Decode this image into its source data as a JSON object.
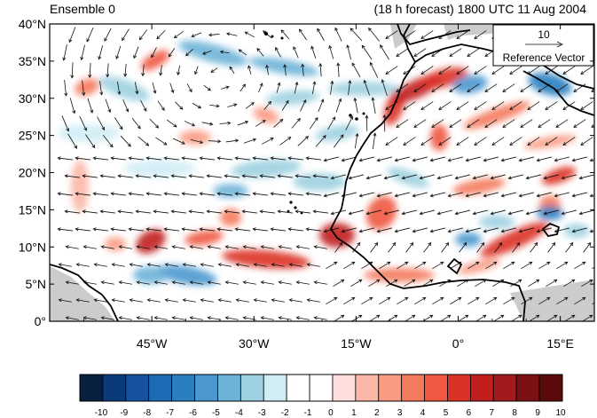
{
  "header": {
    "left_title": "Ensemble 0",
    "right_title": "(18 h forecast) 1800 UTC 11 Aug 2004"
  },
  "map": {
    "lon_range": [
      -60,
      20
    ],
    "lat_range": [
      0,
      40
    ],
    "lat_ticks": [
      {
        "value": 0,
        "label": "0°"
      },
      {
        "value": 5,
        "label": "5°N"
      },
      {
        "value": 10,
        "label": "10°N"
      },
      {
        "value": 15,
        "label": "15°N"
      },
      {
        "value": 20,
        "label": "20°N"
      },
      {
        "value": 25,
        "label": "25°N"
      },
      {
        "value": 30,
        "label": "30°N"
      },
      {
        "value": 35,
        "label": "35°N"
      },
      {
        "value": 40,
        "label": "40°N"
      }
    ],
    "lon_ticks": [
      {
        "value": -45,
        "label": "45°W"
      },
      {
        "value": -30,
        "label": "30°W"
      },
      {
        "value": -15,
        "label": "15°W"
      },
      {
        "value": 0,
        "label": "0°"
      },
      {
        "value": 15,
        "label": "15°E"
      }
    ],
    "colors": {
      "land_missing": "#cccccc",
      "coast": "#000000",
      "vector": "#000000"
    }
  },
  "reference_vector": {
    "magnitude": "10",
    "label": "Reference Vector"
  },
  "colorbar": {
    "levels": [
      "-10",
      "-9",
      "-8",
      "-7",
      "-6",
      "-5",
      "-4",
      "-3",
      "-2",
      "-1",
      "0",
      "1",
      "2",
      "3",
      "4",
      "5",
      "6",
      "7",
      "8",
      "9",
      "10"
    ],
    "colors": [
      "#08203f",
      "#0b3a7a",
      "#1553a0",
      "#1e6bb5",
      "#2a7fc1",
      "#4a98cf",
      "#6db3d8",
      "#9dd0e0",
      "#d0edf5",
      "#ffffff",
      "#ffffff",
      "#ffdede",
      "#fcb7a6",
      "#f99a82",
      "#f47a5d",
      "#ef5841",
      "#db3226",
      "#c11f1d",
      "#a31a1c",
      "#7c1014",
      "#5a0a0a"
    ]
  }
}
